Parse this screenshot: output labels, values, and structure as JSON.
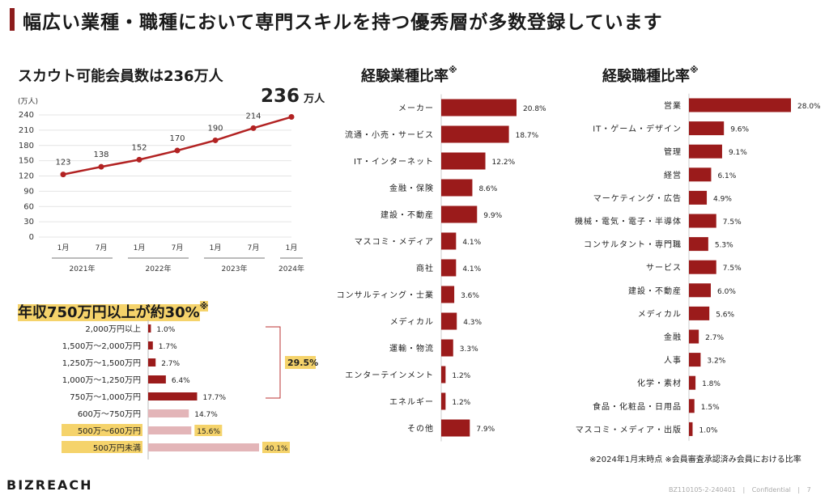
{
  "header": {
    "title": "幅広い業種・職種において専門スキルを持つ優秀層が多数登録しています"
  },
  "scout": {
    "title": "スカウト可能会員数は236万人",
    "unit": "(万人)",
    "highlight_value": "236",
    "highlight_unit": "万人",
    "chart_data": {
      "type": "line",
      "title": "スカウト可能会員数は236万人",
      "ylabel": "(万人)",
      "ylim": [
        0,
        240
      ],
      "yticks": [
        0,
        30,
        60,
        90,
        120,
        150,
        180,
        210,
        240
      ],
      "x": [
        "1月",
        "7月",
        "1月",
        "7月",
        "1月",
        "7月",
        "1月"
      ],
      "groups": [
        "2021年",
        "2022年",
        "2023年",
        "2024年"
      ],
      "values": [
        123,
        138,
        152,
        170,
        190,
        214,
        236
      ],
      "labels": [
        "123",
        "138",
        "152",
        "170",
        "190",
        "214",
        ""
      ],
      "color": "#b22222"
    }
  },
  "income": {
    "title": "年収750万円以上が約30%",
    "title_mark": "※",
    "bracket_label": "29.5%",
    "chart_data": {
      "type": "bar",
      "orientation": "horizontal",
      "categories": [
        "2,000万円以上",
        "1,500万～2,000万円",
        "1,250万～1,500万円",
        "1,000万～1,250万円",
        "750万～1,000万円",
        "600万～750万円",
        "500万～600万円",
        "500万円未満"
      ],
      "values": [
        1.0,
        1.7,
        2.7,
        6.4,
        17.7,
        14.7,
        15.6,
        40.1
      ],
      "labels": [
        "1.0%",
        "1.7%",
        "2.7%",
        "6.4%",
        "17.7%",
        "14.7%",
        "15.6%",
        "40.1%"
      ],
      "colors": [
        "#9b1b1b",
        "#9b1b1b",
        "#9b1b1b",
        "#9b1b1b",
        "#9b1b1b",
        "#e3b5b8",
        "#e3b5b8",
        "#e3b5b8"
      ],
      "highlighted": [
        false,
        false,
        false,
        false,
        false,
        false,
        true,
        true
      ]
    }
  },
  "industry": {
    "title": "経験業種比率",
    "title_mark": "※",
    "chart_data": {
      "type": "bar",
      "orientation": "horizontal",
      "categories": [
        "メーカー",
        "流通・小売・サービス",
        "IT・インターネット",
        "金融・保険",
        "建設・不動産",
        "マスコミ・メディア",
        "商社",
        "コンサルティング・士業",
        "メディカル",
        "運輸・物流",
        "エンターテインメント",
        "エネルギー",
        "その他"
      ],
      "values": [
        20.8,
        18.7,
        12.2,
        8.6,
        9.9,
        4.1,
        4.1,
        3.6,
        4.3,
        3.3,
        1.2,
        1.2,
        7.9
      ],
      "labels": [
        "20.8%",
        "18.7%",
        "12.2%",
        "8.6%",
        "9.9%",
        "4.1%",
        "4.1%",
        "3.6%",
        "4.3%",
        "3.3%",
        "1.2%",
        "1.2%",
        "7.9%"
      ],
      "color": "#9b1b1b"
    }
  },
  "job": {
    "title": "経験職種比率",
    "title_mark": "※",
    "chart_data": {
      "type": "bar",
      "orientation": "horizontal",
      "categories": [
        "営業",
        "IT・ゲーム・デザイン",
        "管理",
        "経営",
        "マーケティング・広告",
        "機械・電気・電子・半導体",
        "コンサルタント・専門職",
        "サービス",
        "建設・不動産",
        "メディカル",
        "金融",
        "人事",
        "化学・素材",
        "食品・化粧品・日用品",
        "マスコミ・メディア・出版"
      ],
      "values": [
        28.0,
        9.6,
        9.1,
        6.1,
        4.9,
        7.5,
        5.3,
        7.5,
        6.0,
        5.6,
        2.7,
        3.2,
        1.8,
        1.5,
        1.0
      ],
      "labels": [
        "28.0%",
        "9.6%",
        "9.1%",
        "6.1%",
        "4.9%",
        "7.5%",
        "5.3%",
        "7.5%",
        "6.0%",
        "5.6%",
        "2.7%",
        "3.2%",
        "1.8%",
        "1.5%",
        "1.0%"
      ],
      "color": "#9b1b1b"
    }
  },
  "footnote": "※2024年1月末時点 ※会員審査承認済み会員における比率",
  "footer": {
    "logo": "BIZREACH",
    "doc_code": "BZ110105-2-240401",
    "confidential": "Confidential",
    "page": "7"
  }
}
